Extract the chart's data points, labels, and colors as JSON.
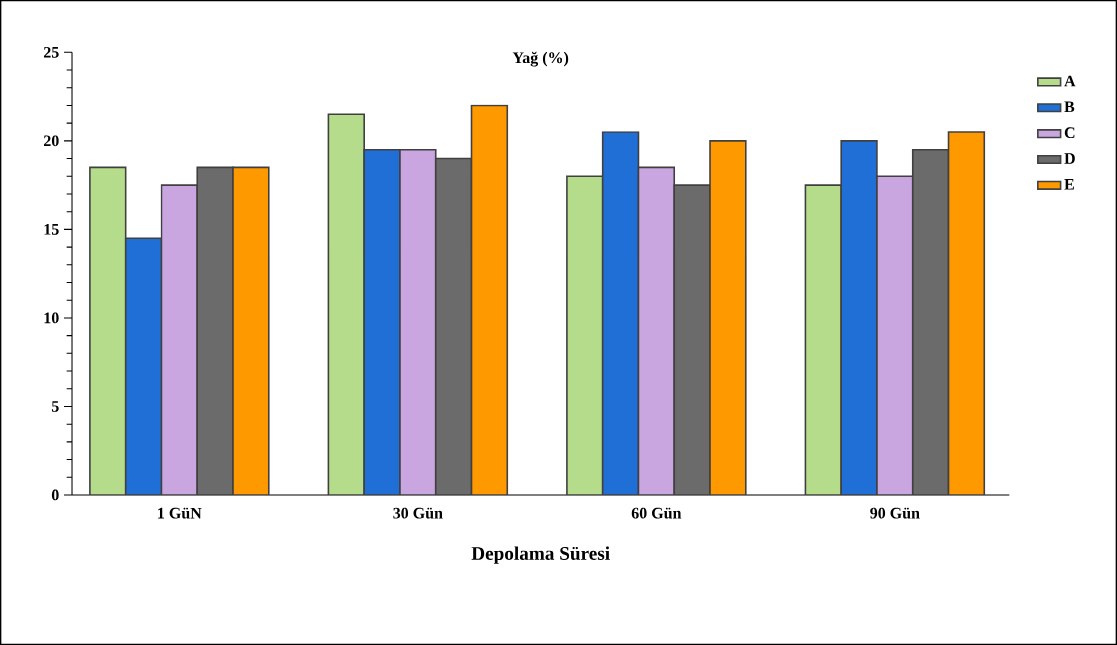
{
  "chart_data": {
    "type": "bar",
    "title": "Yağ (%)",
    "xlabel": "Depolama Süresi",
    "categories": [
      "1 GüN",
      "30 Gün",
      "60 Gün",
      "90 Gün"
    ],
    "series": [
      {
        "name": "A",
        "color": "#b5dc8a",
        "values": [
          18.5,
          21.5,
          18,
          17.5
        ]
      },
      {
        "name": "B",
        "color": "#1f6fd6",
        "values": [
          14.5,
          19.5,
          20.5,
          20
        ]
      },
      {
        "name": "C",
        "color": "#c9a6e0",
        "values": [
          17.5,
          19.5,
          18.5,
          18
        ]
      },
      {
        "name": "D",
        "color": "#6b6b6b",
        "values": [
          18.5,
          19,
          17.5,
          19.5
        ]
      },
      {
        "name": "E",
        "color": "#ff9900",
        "values": [
          18.5,
          22,
          20,
          20.5
        ]
      }
    ],
    "ylim": [
      0,
      25
    ],
    "yticks": [
      0,
      5,
      10,
      15,
      20,
      25
    ],
    "grid": false,
    "legend": "right"
  }
}
